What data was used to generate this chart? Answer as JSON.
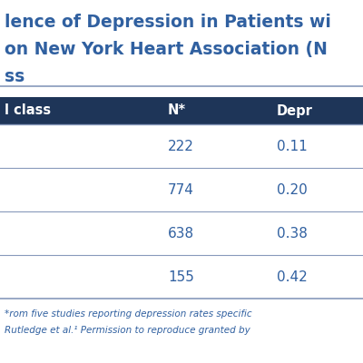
{
  "title_lines": [
    "lence of Depression in Patients wi",
    "on New York Heart Association (N",
    "ss"
  ],
  "header_col1": "l class",
  "header_col2": "N*",
  "header_col3": "Depr",
  "rows": [
    [
      "",
      "222",
      "0.11"
    ],
    [
      "",
      "774",
      "0.20"
    ],
    [
      "",
      "638",
      "0.38"
    ],
    [
      "",
      "155",
      "0.42"
    ]
  ],
  "footer_line1": "*rom five studies reporting depression rates specific",
  "footer_line2": "Rutledge et al.¹ Permission to reproduce granted by",
  "header_bg": "#1e3558",
  "header_text_color": "#ffffff",
  "row_text_color": "#3060a0",
  "footer_text_color": "#3060a0",
  "title_text_color": "#3060a0",
  "bg_color": "#ffffff",
  "separator_color": "#8899bb",
  "title_fontsize": 13.5,
  "header_fontsize": 10.5,
  "data_fontsize": 11,
  "footer_fontsize": 7.5
}
